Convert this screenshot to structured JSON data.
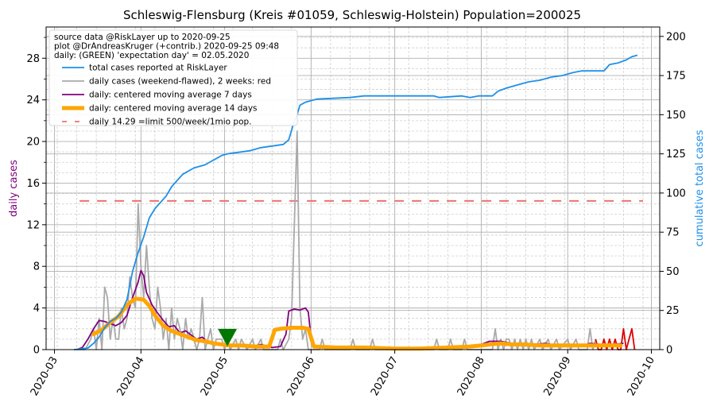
{
  "chart_data": {
    "type": "line",
    "title": "Schleswig-Flensburg (Kreis #01059, Schleswig-Holstein) Population=200025",
    "ylabel_left": "daily cases",
    "ylabel_right": "cumulative total cases",
    "colors": {
      "cumulative": "#1e90e8",
      "daily_raw": "#aaaaaa",
      "daily_recent": "#dd0000",
      "ma7": "#800080",
      "ma14": "#ffa500",
      "limit": "#f07070",
      "expectation_marker": "#007700",
      "left_label": "#800080",
      "right_label": "#1e90e8"
    },
    "left_axis": {
      "ylim": [
        0,
        31
      ],
      "ticks": [
        0,
        4,
        8,
        12,
        16,
        20,
        24,
        28
      ]
    },
    "right_axis": {
      "ylim": [
        0,
        206
      ],
      "ticks": [
        0,
        25,
        50,
        75,
        100,
        125,
        150,
        175,
        200
      ]
    },
    "x_axis": {
      "start": "2020-02-27",
      "end": "2020-10-04",
      "tick_labels": [
        "2020-03",
        "2020-04",
        "2020-05",
        "2020-06",
        "2020-07",
        "2020-08",
        "2020-09",
        "2020-10"
      ]
    },
    "info_lines": [
      "source data @RiskLayer up to 2020-09-25",
      "plot @DrAndreasKruger (+contrib.) 2020-09-25 09:48",
      "daily: (GREEN) 'expectation day' = 02.05.2020"
    ],
    "legend": [
      {
        "label": "total cases reported at RiskLayer",
        "key": "cumulative"
      },
      {
        "label": "daily cases (weekend-flawed), 2 weeks: red",
        "key": "daily_raw"
      },
      {
        "label": "daily: centered moving average 7 days",
        "key": "ma7"
      },
      {
        "label": "daily: centered moving average 14 days",
        "key": "ma14"
      },
      {
        "label": "daily 14.29 =limit 500/week/1mio pop.",
        "key": "limit"
      }
    ],
    "limit_value": 14.29,
    "expectation_day": {
      "date": "2020-05-02",
      "value": 1
    },
    "series": {
      "cumulative": [
        [
          "2020-03-08",
          0
        ],
        [
          "2020-03-13",
          1
        ],
        [
          "2020-03-15",
          4
        ],
        [
          "2020-03-17",
          8
        ],
        [
          "2020-03-19",
          14
        ],
        [
          "2020-03-21",
          18
        ],
        [
          "2020-03-23",
          20
        ],
        [
          "2020-03-25",
          24
        ],
        [
          "2020-03-27",
          32
        ],
        [
          "2020-03-29",
          50
        ],
        [
          "2020-03-31",
          62
        ],
        [
          "2020-04-02",
          72
        ],
        [
          "2020-04-04",
          84
        ],
        [
          "2020-04-06",
          90
        ],
        [
          "2020-04-08",
          94
        ],
        [
          "2020-04-10",
          98
        ],
        [
          "2020-04-12",
          104
        ],
        [
          "2020-04-14",
          108
        ],
        [
          "2020-04-16",
          112
        ],
        [
          "2020-04-18",
          114
        ],
        [
          "2020-04-20",
          116
        ],
        [
          "2020-04-22",
          117
        ],
        [
          "2020-04-24",
          118
        ],
        [
          "2020-04-26",
          120
        ],
        [
          "2020-04-28",
          122
        ],
        [
          "2020-04-30",
          124
        ],
        [
          "2020-05-02",
          125
        ],
        [
          "2020-05-06",
          126
        ],
        [
          "2020-05-10",
          127
        ],
        [
          "2020-05-14",
          129
        ],
        [
          "2020-05-18",
          130
        ],
        [
          "2020-05-22",
          131
        ],
        [
          "2020-05-24",
          134
        ],
        [
          "2020-05-26",
          146
        ],
        [
          "2020-05-27",
          150
        ],
        [
          "2020-05-28",
          156
        ],
        [
          "2020-05-30",
          158
        ],
        [
          "2020-06-03",
          160
        ],
        [
          "2020-06-15",
          161
        ],
        [
          "2020-06-20",
          162
        ],
        [
          "2020-07-15",
          162
        ],
        [
          "2020-07-17",
          161
        ],
        [
          "2020-07-25",
          162
        ],
        [
          "2020-07-28",
          161
        ],
        [
          "2020-07-31",
          162
        ],
        [
          "2020-08-05",
          162
        ],
        [
          "2020-08-07",
          165
        ],
        [
          "2020-08-10",
          167
        ],
        [
          "2020-08-14",
          169
        ],
        [
          "2020-08-18",
          171
        ],
        [
          "2020-08-22",
          172
        ],
        [
          "2020-08-26",
          174
        ],
        [
          "2020-08-30",
          175
        ],
        [
          "2020-09-03",
          177
        ],
        [
          "2020-09-06",
          178
        ],
        [
          "2020-09-14",
          178
        ],
        [
          "2020-09-16",
          182
        ],
        [
          "2020-09-19",
          183
        ],
        [
          "2020-09-22",
          185
        ],
        [
          "2020-09-24",
          187
        ],
        [
          "2020-09-26",
          188
        ]
      ],
      "daily_raw": [
        [
          "2020-03-08",
          0
        ],
        [
          "2020-03-12",
          0
        ],
        [
          "2020-03-14",
          1
        ],
        [
          "2020-03-15",
          2
        ],
        [
          "2020-03-16",
          0
        ],
        [
          "2020-03-17",
          3
        ],
        [
          "2020-03-18",
          0
        ],
        [
          "2020-03-19",
          6
        ],
        [
          "2020-03-20",
          5
        ],
        [
          "2020-03-21",
          1
        ],
        [
          "2020-03-22",
          3
        ],
        [
          "2020-03-23",
          1
        ],
        [
          "2020-03-24",
          1
        ],
        [
          "2020-03-25",
          4
        ],
        [
          "2020-03-26",
          2
        ],
        [
          "2020-03-27",
          3
        ],
        [
          "2020-03-28",
          7
        ],
        [
          "2020-03-29",
          5
        ],
        [
          "2020-03-30",
          4
        ],
        [
          "2020-03-31",
          14
        ],
        [
          "2020-04-01",
          8
        ],
        [
          "2020-04-02",
          5
        ],
        [
          "2020-04-03",
          10
        ],
        [
          "2020-04-04",
          6
        ],
        [
          "2020-04-05",
          3
        ],
        [
          "2020-04-06",
          2
        ],
        [
          "2020-04-07",
          6
        ],
        [
          "2020-04-08",
          4
        ],
        [
          "2020-04-09",
          1
        ],
        [
          "2020-04-10",
          3
        ],
        [
          "2020-04-11",
          0
        ],
        [
          "2020-04-12",
          4
        ],
        [
          "2020-04-13",
          1
        ],
        [
          "2020-04-14",
          3
        ],
        [
          "2020-04-15",
          2
        ],
        [
          "2020-04-16",
          0
        ],
        [
          "2020-04-17",
          3
        ],
        [
          "2020-04-18",
          1
        ],
        [
          "2020-04-19",
          2
        ],
        [
          "2020-04-20",
          1
        ],
        [
          "2020-04-21",
          0
        ],
        [
          "2020-04-22",
          1
        ],
        [
          "2020-04-23",
          5
        ],
        [
          "2020-04-24",
          0
        ],
        [
          "2020-04-25",
          1
        ],
        [
          "2020-04-26",
          2
        ],
        [
          "2020-04-27",
          0
        ],
        [
          "2020-04-28",
          1
        ],
        [
          "2020-04-29",
          1
        ],
        [
          "2020-04-30",
          1
        ],
        [
          "2020-05-01",
          0
        ],
        [
          "2020-05-02",
          1
        ],
        [
          "2020-05-03",
          0
        ],
        [
          "2020-05-05",
          1
        ],
        [
          "2020-05-06",
          0
        ],
        [
          "2020-05-07",
          1
        ],
        [
          "2020-05-09",
          0
        ],
        [
          "2020-05-11",
          1
        ],
        [
          "2020-05-12",
          0
        ],
        [
          "2020-05-14",
          1
        ],
        [
          "2020-05-15",
          0
        ],
        [
          "2020-05-20",
          0
        ],
        [
          "2020-05-21",
          1
        ],
        [
          "2020-05-22",
          0
        ],
        [
          "2020-05-24",
          1
        ],
        [
          "2020-05-25",
          3
        ],
        [
          "2020-05-26",
          12
        ],
        [
          "2020-05-27",
          21
        ],
        [
          "2020-05-28",
          4
        ],
        [
          "2020-05-29",
          1
        ],
        [
          "2020-05-30",
          2
        ],
        [
          "2020-05-31",
          0
        ],
        [
          "2020-06-04",
          0
        ],
        [
          "2020-06-05",
          1
        ],
        [
          "2020-06-06",
          0
        ],
        [
          "2020-06-15",
          0
        ],
        [
          "2020-06-16",
          1
        ],
        [
          "2020-06-17",
          0
        ],
        [
          "2020-06-22",
          0
        ],
        [
          "2020-06-23",
          1
        ],
        [
          "2020-06-24",
          0
        ],
        [
          "2020-07-15",
          0
        ],
        [
          "2020-07-16",
          1
        ],
        [
          "2020-07-17",
          0
        ],
        [
          "2020-07-20",
          0
        ],
        [
          "2020-07-21",
          1
        ],
        [
          "2020-07-22",
          0
        ],
        [
          "2020-07-25",
          0
        ],
        [
          "2020-07-26",
          1
        ],
        [
          "2020-07-27",
          0
        ],
        [
          "2020-08-05",
          0
        ],
        [
          "2020-08-06",
          2
        ],
        [
          "2020-08-07",
          0
        ],
        [
          "2020-08-08",
          1
        ],
        [
          "2020-08-09",
          0
        ],
        [
          "2020-08-10",
          1
        ],
        [
          "2020-08-11",
          1
        ],
        [
          "2020-08-12",
          0
        ],
        [
          "2020-08-13",
          1
        ],
        [
          "2020-08-14",
          0
        ],
        [
          "2020-08-15",
          1
        ],
        [
          "2020-08-16",
          0
        ],
        [
          "2020-08-17",
          1
        ],
        [
          "2020-08-18",
          0
        ],
        [
          "2020-08-19",
          1
        ],
        [
          "2020-08-20",
          0
        ],
        [
          "2020-08-22",
          1
        ],
        [
          "2020-08-23",
          0
        ],
        [
          "2020-08-25",
          1
        ],
        [
          "2020-08-26",
          0
        ],
        [
          "2020-08-28",
          1
        ],
        [
          "2020-08-29",
          0
        ],
        [
          "2020-09-01",
          1
        ],
        [
          "2020-09-02",
          0
        ],
        [
          "2020-09-04",
          1
        ],
        [
          "2020-09-05",
          0
        ],
        [
          "2020-09-08",
          0
        ],
        [
          "2020-09-09",
          2
        ],
        [
          "2020-09-10",
          0
        ],
        [
          "2020-09-11",
          1
        ]
      ],
      "daily_recent": [
        [
          "2020-09-11",
          1
        ],
        [
          "2020-09-12",
          0
        ],
        [
          "2020-09-13",
          0
        ],
        [
          "2020-09-14",
          1
        ],
        [
          "2020-09-15",
          0
        ],
        [
          "2020-09-16",
          1
        ],
        [
          "2020-09-17",
          0
        ],
        [
          "2020-09-18",
          1
        ],
        [
          "2020-09-19",
          0
        ],
        [
          "2020-09-20",
          0
        ],
        [
          "2020-09-21",
          2
        ],
        [
          "2020-09-22",
          0
        ],
        [
          "2020-09-23",
          1
        ],
        [
          "2020-09-24",
          2
        ],
        [
          "2020-09-25",
          0
        ]
      ],
      "ma7": [
        [
          "2020-03-09",
          0
        ],
        [
          "2020-03-11",
          0.2
        ],
        [
          "2020-03-13",
          1
        ],
        [
          "2020-03-15",
          2
        ],
        [
          "2020-03-17",
          2.8
        ],
        [
          "2020-03-19",
          2.7
        ],
        [
          "2020-03-21",
          2.5
        ],
        [
          "2020-03-23",
          2.3
        ],
        [
          "2020-03-25",
          2.6
        ],
        [
          "2020-03-27",
          3.3
        ],
        [
          "2020-03-29",
          5
        ],
        [
          "2020-03-31",
          6.5
        ],
        [
          "2020-04-01",
          7.6
        ],
        [
          "2020-04-02",
          7.1
        ],
        [
          "2020-04-03",
          5.5
        ],
        [
          "2020-04-05",
          4.3
        ],
        [
          "2020-04-07",
          3.5
        ],
        [
          "2020-04-09",
          2.8
        ],
        [
          "2020-04-11",
          2.2
        ],
        [
          "2020-04-13",
          2.3
        ],
        [
          "2020-04-15",
          1.6
        ],
        [
          "2020-04-17",
          1.8
        ],
        [
          "2020-04-19",
          1.4
        ],
        [
          "2020-04-21",
          1.0
        ],
        [
          "2020-04-23",
          1.2
        ],
        [
          "2020-04-25",
          0.7
        ],
        [
          "2020-04-27",
          0.7
        ],
        [
          "2020-04-29",
          0.6
        ],
        [
          "2020-05-01",
          0.5
        ],
        [
          "2020-05-03",
          0.5
        ],
        [
          "2020-05-05",
          0.3
        ],
        [
          "2020-05-08",
          0.4
        ],
        [
          "2020-05-11",
          0.3
        ],
        [
          "2020-05-14",
          0.5
        ],
        [
          "2020-05-18",
          0.2
        ],
        [
          "2020-05-21",
          0.3
        ],
        [
          "2020-05-23",
          1.5
        ],
        [
          "2020-05-24",
          3.7
        ],
        [
          "2020-05-26",
          3.9
        ],
        [
          "2020-05-28",
          3.8
        ],
        [
          "2020-05-30",
          4.0
        ],
        [
          "2020-05-31",
          3.6
        ],
        [
          "2020-06-01",
          1
        ],
        [
          "2020-06-02",
          0.3
        ],
        [
          "2020-06-05",
          0.2
        ],
        [
          "2020-06-20",
          0.2
        ],
        [
          "2020-07-10",
          0.1
        ],
        [
          "2020-07-25",
          0.2
        ],
        [
          "2020-08-01",
          0.5
        ],
        [
          "2020-08-04",
          0.8
        ],
        [
          "2020-08-08",
          0.8
        ],
        [
          "2020-08-12",
          0.6
        ],
        [
          "2020-08-16",
          0.5
        ],
        [
          "2020-08-20",
          0.5
        ],
        [
          "2020-08-24",
          0.6
        ],
        [
          "2020-08-28",
          0.4
        ],
        [
          "2020-09-01",
          0.4
        ],
        [
          "2020-09-05",
          0.3
        ],
        [
          "2020-09-09",
          0.6
        ],
        [
          "2020-09-13",
          0.5
        ],
        [
          "2020-09-17",
          0.5
        ],
        [
          "2020-09-21",
          0.6
        ]
      ],
      "ma14": [
        [
          "2020-03-15",
          1.5
        ],
        [
          "2020-03-18",
          1.9
        ],
        [
          "2020-03-21",
          2.6
        ],
        [
          "2020-03-24",
          3.2
        ],
        [
          "2020-03-27",
          4.3
        ],
        [
          "2020-03-30",
          4.9
        ],
        [
          "2020-04-02",
          4.8
        ],
        [
          "2020-04-04",
          4.2
        ],
        [
          "2020-04-06",
          3.3
        ],
        [
          "2020-04-09",
          2.3
        ],
        [
          "2020-04-12",
          1.8
        ],
        [
          "2020-04-15",
          1.5
        ],
        [
          "2020-04-18",
          1.2
        ],
        [
          "2020-04-21",
          0.9
        ],
        [
          "2020-04-24",
          0.8
        ],
        [
          "2020-04-27",
          0.6
        ],
        [
          "2020-04-30",
          0.5
        ],
        [
          "2020-05-03",
          0.4
        ],
        [
          "2020-05-07",
          0.4
        ],
        [
          "2020-05-12",
          0.3
        ],
        [
          "2020-05-17",
          0.3
        ],
        [
          "2020-05-19",
          1.9
        ],
        [
          "2020-05-21",
          2.0
        ],
        [
          "2020-05-25",
          2.1
        ],
        [
          "2020-05-29",
          2.1
        ],
        [
          "2020-05-31",
          2.0
        ],
        [
          "2020-06-02",
          0.3
        ],
        [
          "2020-06-10",
          0.2
        ],
        [
          "2020-06-20",
          0.2
        ],
        [
          "2020-07-01",
          0.1
        ],
        [
          "2020-07-10",
          0.1
        ],
        [
          "2020-07-20",
          0.2
        ],
        [
          "2020-07-28",
          0.3
        ],
        [
          "2020-08-01",
          0.4
        ],
        [
          "2020-08-04",
          0.5
        ],
        [
          "2020-08-08",
          0.6
        ],
        [
          "2020-08-12",
          0.5
        ],
        [
          "2020-08-16",
          0.5
        ],
        [
          "2020-08-22",
          0.4
        ],
        [
          "2020-08-28",
          0.4
        ],
        [
          "2020-09-03",
          0.4
        ],
        [
          "2020-09-09",
          0.4
        ],
        [
          "2020-09-15",
          0.4
        ],
        [
          "2020-09-20",
          0.4
        ]
      ]
    }
  }
}
